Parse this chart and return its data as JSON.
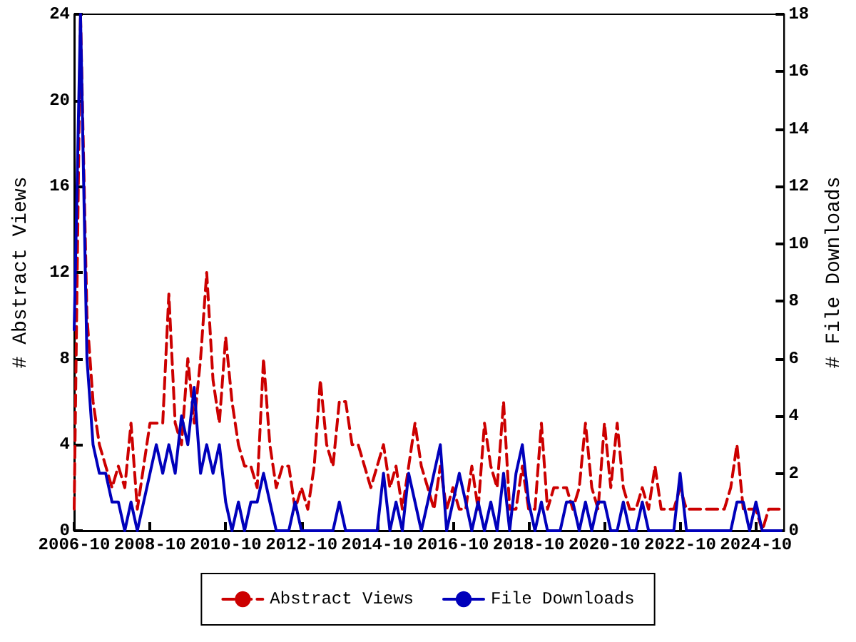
{
  "chart_data": {
    "type": "line",
    "ylabel": "# Abstract Views",
    "y2label": "# File Downloads",
    "x": [
      "2006-10",
      "2006-12",
      "2007-02",
      "2007-04",
      "2007-06",
      "2007-08",
      "2007-10",
      "2007-12",
      "2008-02",
      "2008-04",
      "2008-06",
      "2008-08",
      "2008-10",
      "2008-12",
      "2009-02",
      "2009-04",
      "2009-06",
      "2009-08",
      "2009-10",
      "2009-12",
      "2010-02",
      "2010-04",
      "2010-06",
      "2010-08",
      "2010-10",
      "2010-12",
      "2011-02",
      "2011-04",
      "2011-06",
      "2011-08",
      "2011-10",
      "2011-12",
      "2012-02",
      "2012-04",
      "2012-06",
      "2012-08",
      "2012-10",
      "2012-12",
      "2013-02",
      "2013-04",
      "2013-06",
      "2013-08",
      "2013-10",
      "2013-12",
      "2014-02",
      "2014-04",
      "2014-06",
      "2014-08",
      "2014-10",
      "2014-12",
      "2015-02",
      "2015-04",
      "2015-06",
      "2015-08",
      "2015-10",
      "2015-12",
      "2016-02",
      "2016-04",
      "2016-06",
      "2016-08",
      "2016-10",
      "2016-12",
      "2017-02",
      "2017-04",
      "2017-06",
      "2017-08",
      "2017-10",
      "2017-12",
      "2018-02",
      "2018-04",
      "2018-06",
      "2018-08",
      "2018-10",
      "2018-12",
      "2019-02",
      "2019-04",
      "2019-06",
      "2019-08",
      "2019-10",
      "2019-12",
      "2020-02",
      "2020-04",
      "2020-06",
      "2020-08",
      "2020-10",
      "2020-12",
      "2021-02",
      "2021-04",
      "2021-06",
      "2021-08",
      "2021-10",
      "2021-12",
      "2022-02",
      "2022-04",
      "2022-06",
      "2022-08",
      "2022-10",
      "2022-12",
      "2023-02",
      "2023-04",
      "2023-06",
      "2023-08",
      "2023-10",
      "2023-12",
      "2024-02",
      "2024-04",
      "2024-06",
      "2024-08",
      "2024-10",
      "2024-12",
      "2025-02",
      "2025-04",
      "2025-06"
    ],
    "series": [
      {
        "name": "Abstract Views",
        "color": "#cc0000",
        "line_style": "dashed",
        "values": [
          1,
          24,
          10,
          6,
          4,
          3,
          2,
          3,
          2,
          5,
          1,
          3,
          5,
          5,
          5,
          11,
          5,
          4,
          8,
          5,
          8,
          12,
          7,
          5,
          9,
          6,
          4,
          3,
          3,
          2,
          8,
          4,
          2,
          3,
          3,
          1,
          2,
          1,
          3,
          7,
          4,
          3,
          6,
          6,
          4,
          4,
          3,
          2,
          3,
          4,
          2,
          3,
          1,
          3,
          5,
          3,
          2,
          1,
          3,
          1,
          2,
          1,
          1,
          3,
          1,
          5,
          3,
          2,
          6,
          1,
          1,
          3,
          1,
          1,
          5,
          1,
          2,
          2,
          2,
          1,
          2,
          5,
          2,
          1,
          5,
          2,
          5,
          2,
          1,
          1,
          2,
          1,
          3,
          1,
          1,
          1,
          2,
          1,
          1,
          1,
          1,
          1,
          1,
          1,
          2,
          4,
          1,
          1,
          1,
          0,
          1,
          1,
          1
        ]
      },
      {
        "name": "File Downloads",
        "color": "#0000bb",
        "axis": "y2",
        "line_style": "solid",
        "values": [
          7,
          18,
          6,
          3,
          2,
          2,
          1,
          1,
          0,
          1,
          0,
          1,
          2,
          3,
          2,
          3,
          2,
          4,
          3,
          5,
          2,
          3,
          2,
          3,
          1,
          0,
          1,
          0,
          1,
          1,
          2,
          1,
          0,
          0,
          0,
          1,
          0,
          0,
          0,
          0,
          0,
          0,
          1,
          0,
          0,
          0,
          0,
          0,
          0,
          2,
          0,
          1,
          0,
          2,
          1,
          0,
          1,
          2,
          3,
          0,
          1,
          2,
          1,
          0,
          1,
          0,
          1,
          0,
          2,
          0,
          2,
          3,
          1,
          0,
          1,
          0,
          0,
          0,
          1,
          1,
          0,
          1,
          0,
          1,
          1,
          0,
          0,
          1,
          0,
          0,
          1,
          0,
          0,
          0,
          0,
          0,
          2,
          0,
          0,
          0,
          0,
          0,
          0,
          0,
          0,
          1,
          1,
          0,
          1,
          0,
          0,
          0,
          0
        ]
      }
    ],
    "xlim": [
      "2006-10",
      "2025-07"
    ],
    "xticks": [
      "2006-10",
      "2008-10",
      "2010-10",
      "2012-10",
      "2014-10",
      "2016-10",
      "2018-10",
      "2020-10",
      "2022-10",
      "2024-10"
    ],
    "ylim": [
      0,
      24
    ],
    "yticks": [
      0,
      4,
      8,
      12,
      16,
      20,
      24
    ],
    "y2lim": [
      0,
      18
    ],
    "y2ticks": [
      0,
      2,
      4,
      6,
      8,
      10,
      12,
      14,
      16,
      18
    ],
    "marker": "none",
    "grid": false,
    "legend": "bottom"
  }
}
